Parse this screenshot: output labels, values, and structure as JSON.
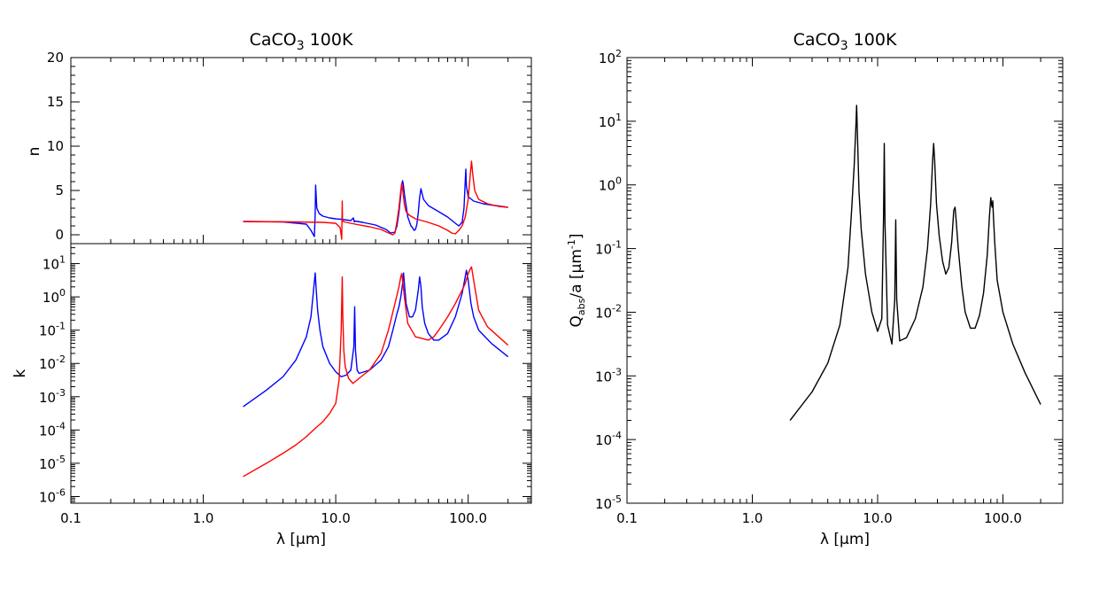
{
  "chart_data": [
    {
      "type": "line",
      "title": "CaCO3 100K",
      "title_main": "CaCO",
      "title_sub": "3",
      "title_rest": " 100K",
      "ylabel": "n",
      "xscale": "log",
      "xlim": [
        0.1,
        300
      ],
      "ylim": [
        -1,
        20
      ],
      "yticks": [
        "0",
        "5",
        "10",
        "15",
        "20"
      ],
      "series": [
        {
          "color": "#0000ff",
          "x": [
            2,
            4,
            6,
            6.5,
            6.9,
            7.0,
            7.05,
            7.2,
            7.5,
            8,
            9,
            10,
            11,
            13,
            13.6,
            13.8,
            14,
            16,
            20,
            24,
            26,
            28,
            29,
            30,
            31,
            31.5,
            32,
            32.5,
            33,
            35,
            37,
            38,
            39,
            40,
            41,
            42,
            43,
            44,
            46,
            50,
            60,
            70,
            80,
            85,
            90,
            93,
            95,
            96,
            97,
            100,
            110,
            130,
            160,
            200
          ],
          "y": [
            1.5,
            1.45,
            1.2,
            0.5,
            -0.2,
            2.5,
            5.6,
            3.0,
            2.4,
            2.1,
            1.9,
            1.8,
            1.75,
            1.6,
            1.9,
            1.45,
            1.55,
            1.4,
            1.1,
            0.6,
            0.2,
            0.3,
            1.0,
            2.5,
            4.5,
            5.7,
            6.1,
            5.5,
            4.6,
            2.0,
            1.0,
            0.8,
            0.5,
            0.6,
            1.2,
            2.5,
            4.2,
            5.2,
            4.0,
            3.3,
            2.6,
            2.0,
            1.3,
            1.0,
            1.4,
            3.0,
            6.0,
            7.4,
            5.5,
            4.3,
            3.8,
            3.5,
            3.3,
            3.1
          ]
        },
        {
          "color": "#ff0000",
          "x": [
            2,
            5,
            8,
            10,
            10.8,
            11.1,
            11.2,
            11.25,
            11.4,
            12,
            14,
            18,
            22,
            25,
            27,
            28,
            29,
            30,
            31,
            31.5,
            32,
            33,
            34,
            36,
            40,
            50,
            60,
            70,
            75,
            80,
            85,
            90,
            95,
            100,
            104,
            106,
            108,
            112,
            120,
            140,
            170,
            200
          ],
          "y": [
            1.5,
            1.45,
            1.4,
            1.3,
            0.8,
            -0.5,
            3.8,
            1.6,
            1.5,
            1.4,
            1.2,
            0.9,
            0.6,
            0.2,
            0.0,
            0.2,
            1.5,
            3.0,
            5.0,
            5.8,
            5.2,
            3.4,
            2.6,
            2.2,
            1.8,
            1.4,
            1.0,
            0.5,
            0.2,
            0.1,
            0.5,
            1.0,
            2.0,
            4.0,
            7.0,
            8.3,
            7.0,
            5.0,
            4.0,
            3.5,
            3.2,
            3.1
          ]
        }
      ]
    },
    {
      "type": "line",
      "ylabel": "k",
      "xlabel": "λ [μm]",
      "xscale": "log",
      "yscale": "log",
      "xlim": [
        0.1,
        300
      ],
      "ylim": [
        -6.2,
        1.6
      ],
      "xticks": [
        "0.1",
        "1.0",
        "10.0",
        "100.0"
      ],
      "yticks": [
        "10-6",
        "10-5",
        "10-4",
        "10-3",
        "10-2",
        "10-1",
        "100",
        "101"
      ],
      "series": [
        {
          "color": "#0000ff",
          "x": [
            2,
            3,
            4,
            5,
            6,
            6.5,
            6.8,
            7.0,
            7.1,
            7.3,
            7.6,
            8,
            9,
            10,
            11,
            12,
            13,
            13.7,
            13.9,
            14.1,
            14.5,
            15,
            18,
            22,
            25,
            27,
            29,
            30,
            31,
            32,
            32.5,
            33,
            34,
            36,
            38,
            40,
            42,
            43,
            44,
            45,
            47,
            50,
            55,
            60,
            70,
            80,
            90,
            95,
            97,
            100,
            105,
            110,
            120,
            150,
            200
          ],
          "y": [
            -3.3,
            -2.8,
            -2.4,
            -1.9,
            -1.2,
            -0.6,
            0.2,
            0.72,
            0.3,
            -0.4,
            -1.0,
            -1.5,
            -2.0,
            -2.25,
            -2.4,
            -2.35,
            -2.2,
            -1.5,
            -0.3,
            -1.6,
            -2.2,
            -2.3,
            -2.2,
            -1.9,
            -1.5,
            -1.0,
            -0.5,
            -0.3,
            0.0,
            0.4,
            0.72,
            0.4,
            -0.2,
            -0.6,
            -0.6,
            -0.4,
            0.2,
            0.6,
            0.3,
            -0.3,
            -0.8,
            -1.1,
            -1.3,
            -1.3,
            -1.1,
            -0.6,
            0.1,
            0.6,
            0.8,
            0.5,
            -0.2,
            -0.6,
            -1.0,
            -1.4,
            -1.8
          ]
        },
        {
          "color": "#ff0000",
          "x": [
            2,
            3,
            4,
            5,
            6,
            7,
            8,
            9,
            10,
            10.6,
            11.0,
            11.2,
            11.3,
            11.5,
            11.8,
            12.5,
            13.5,
            15,
            18,
            22,
            25,
            28,
            30,
            31,
            31.5,
            32,
            33,
            35,
            40,
            45,
            50,
            55,
            60,
            70,
            80,
            90,
            95,
            100,
            104,
            106,
            110,
            120,
            140,
            170,
            200
          ],
          "y": [
            -5.4,
            -5.0,
            -4.7,
            -4.45,
            -4.2,
            -3.95,
            -3.75,
            -3.5,
            -3.2,
            -2.5,
            -1.0,
            0.6,
            -0.5,
            -1.6,
            -2.1,
            -2.45,
            -2.6,
            -2.45,
            -2.2,
            -1.7,
            -1.0,
            -0.2,
            0.3,
            0.6,
            0.7,
            0.5,
            0.0,
            -0.8,
            -1.2,
            -1.25,
            -1.3,
            -1.2,
            -1.0,
            -0.6,
            -0.2,
            0.2,
            0.4,
            0.7,
            0.85,
            0.9,
            0.5,
            -0.4,
            -0.9,
            -1.2,
            -1.45
          ]
        }
      ]
    },
    {
      "type": "line",
      "title": "CaCO3 100K",
      "title_main": "CaCO",
      "title_sub": "3",
      "title_rest": " 100K",
      "ylabel": "Qabs/a [μm-1]",
      "xlabel": "λ [μm]",
      "xscale": "log",
      "yscale": "log",
      "xlim": [
        0.1,
        300
      ],
      "ylim": [
        -5,
        2
      ],
      "xticks": [
        "0.1",
        "1.0",
        "10.0",
        "100.0"
      ],
      "yticks": [
        "10-5",
        "10-4",
        "10-3",
        "10-2",
        "10-1",
        "100",
        "101",
        "102"
      ],
      "series": [
        {
          "color": "#000000",
          "x": [
            2,
            3,
            4,
            5,
            5.8,
            6.2,
            6.5,
            6.7,
            6.8,
            6.9,
            7.1,
            7.4,
            8,
            9,
            10,
            10.8,
            11.15,
            11.3,
            11.45,
            12,
            13,
            13.7,
            13.95,
            14.2,
            15,
            17,
            20,
            23,
            25,
            26.5,
            27.5,
            28,
            28.5,
            29.5,
            31,
            33,
            35,
            37,
            39,
            40.5,
            41.5,
            42.5,
            44,
            47,
            50,
            55,
            60,
            65,
            70,
            75,
            78,
            80,
            81,
            82,
            83,
            84,
            86,
            90,
            100,
            120,
            150,
            200
          ],
          "y": [
            -3.7,
            -3.25,
            -2.8,
            -2.2,
            -1.3,
            -0.4,
            0.3,
            0.9,
            1.25,
            0.8,
            -0.1,
            -0.7,
            -1.4,
            -2.0,
            -2.3,
            -2.1,
            -0.5,
            0.65,
            -0.6,
            -2.2,
            -2.5,
            -1.8,
            -0.55,
            -1.8,
            -2.45,
            -2.4,
            -2.1,
            -1.6,
            -1.0,
            -0.3,
            0.4,
            0.65,
            0.4,
            -0.3,
            -0.8,
            -1.2,
            -1.4,
            -1.3,
            -0.9,
            -0.4,
            -0.35,
            -0.6,
            -1.0,
            -1.6,
            -2.0,
            -2.25,
            -2.25,
            -2.05,
            -1.7,
            -1.1,
            -0.5,
            -0.2,
            -0.3,
            -0.35,
            -0.25,
            -0.5,
            -0.9,
            -1.5,
            -2.0,
            -2.5,
            -2.95,
            -3.45
          ]
        }
      ]
    }
  ]
}
